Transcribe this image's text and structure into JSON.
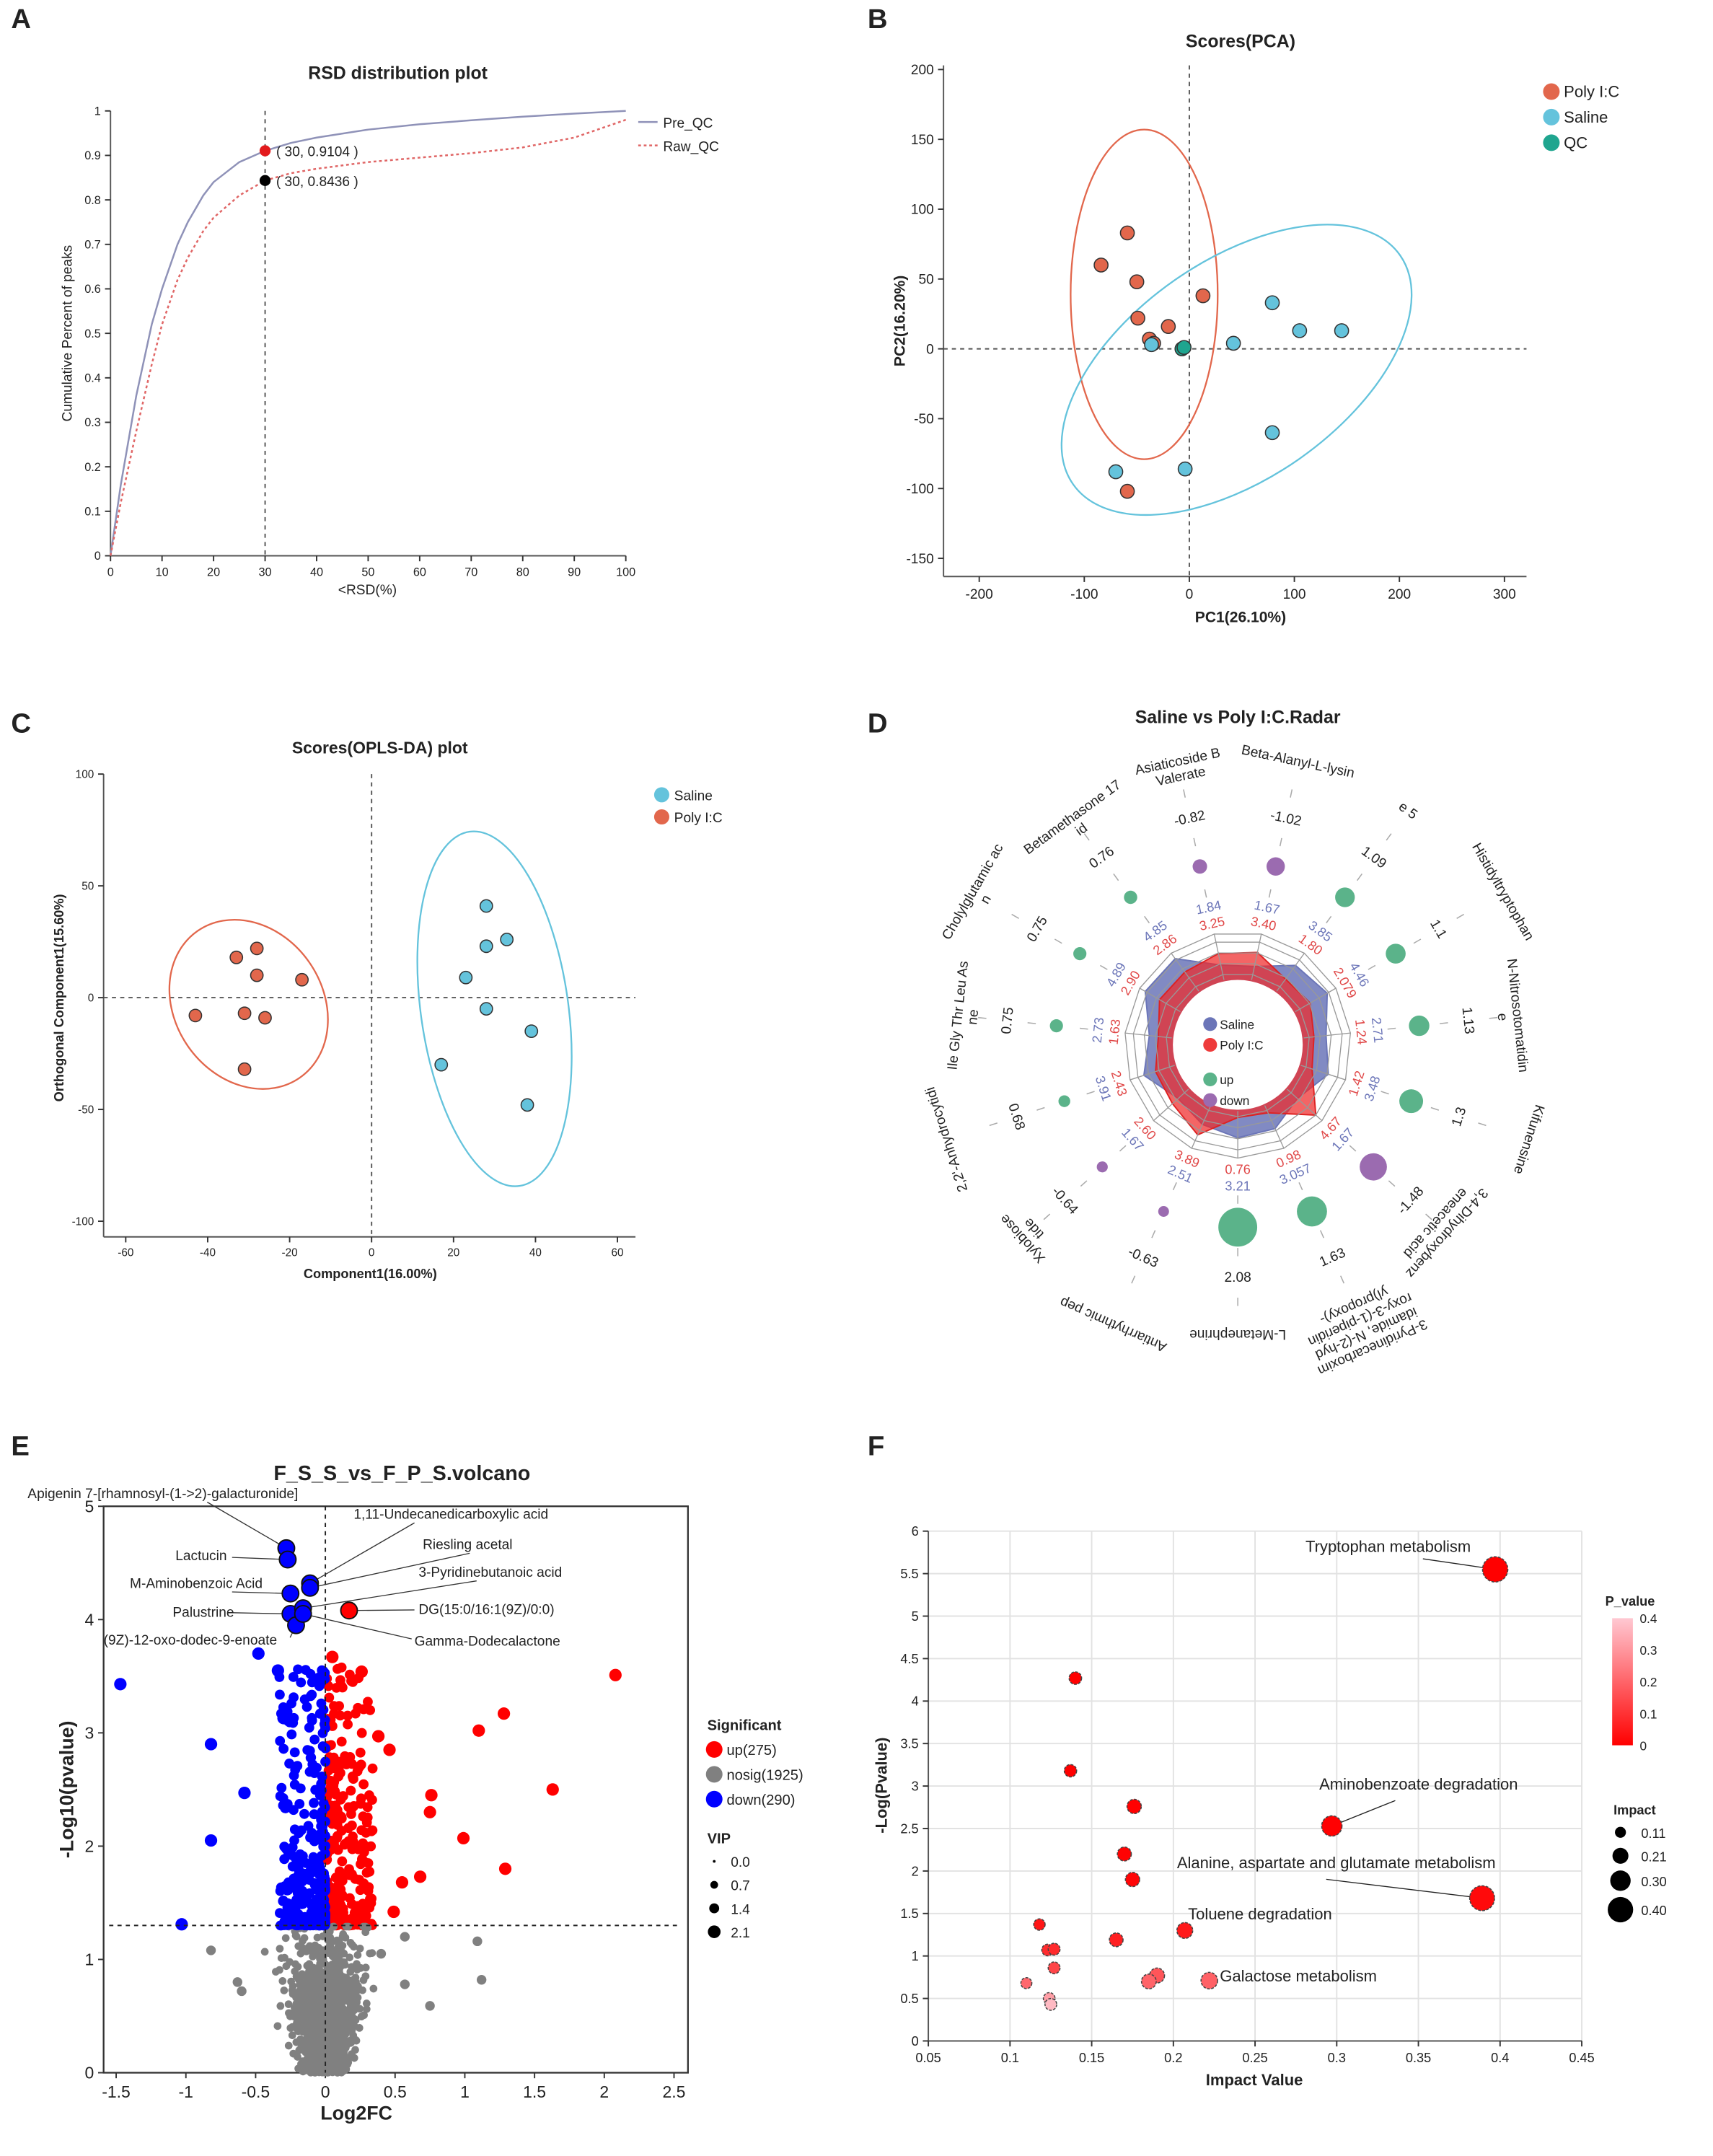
{
  "figure": {
    "panel_labels": [
      "A",
      "B",
      "C",
      "D",
      "E",
      "F"
    ]
  },
  "chart_data": [
    {
      "type": "line",
      "title": "RSD distribution plot",
      "xlabel": "<RSD(%)",
      "ylabel": "Cumulative Percent of peaks",
      "xlim": [
        0,
        100
      ],
      "ylim": [
        0,
        1
      ],
      "xticks": [
        0,
        10,
        20,
        30,
        40,
        50,
        60,
        70,
        80,
        90,
        100
      ],
      "yticks": [
        0,
        0.1,
        0.2,
        0.3,
        0.4,
        0.5,
        0.6,
        0.7,
        0.8,
        0.9,
        1
      ],
      "grid": false,
      "legend_position": "top-right",
      "reference_line_x": 30,
      "series": [
        {
          "name": "Pre_QC",
          "color": "#8f92b8",
          "style": "solid",
          "x": [
            0,
            2,
            5,
            8,
            10,
            13,
            15,
            18,
            20,
            25,
            30,
            35,
            40,
            50,
            60,
            70,
            80,
            90,
            100
          ],
          "y": [
            0,
            0.16,
            0.36,
            0.52,
            0.6,
            0.7,
            0.75,
            0.81,
            0.84,
            0.885,
            0.9104,
            0.928,
            0.94,
            0.958,
            0.97,
            0.979,
            0.987,
            0.994,
            1
          ]
        },
        {
          "name": "Raw_QC",
          "color": "#e06666",
          "style": "dotted",
          "x": [
            0,
            2,
            5,
            8,
            10,
            13,
            15,
            18,
            20,
            25,
            30,
            35,
            40,
            50,
            60,
            70,
            80,
            90,
            100
          ],
          "y": [
            0,
            0.12,
            0.28,
            0.43,
            0.52,
            0.62,
            0.67,
            0.73,
            0.76,
            0.81,
            0.8436,
            0.86,
            0.87,
            0.885,
            0.895,
            0.905,
            0.918,
            0.94,
            0.98
          ]
        }
      ],
      "annotations": [
        {
          "x": 30,
          "y": 0.9104,
          "label": "( 30, 0.9104 )",
          "color": "#e31a1c"
        },
        {
          "x": 30,
          "y": 0.8436,
          "label": "( 30, 0.8436 )",
          "color": "#000000"
        }
      ]
    },
    {
      "type": "scatter",
      "title": "Scores(PCA)",
      "xlabel": "PC1(26.10%)",
      "ylabel": "PC2(16.20%)",
      "xlim": [
        -234,
        321
      ],
      "ylim": [
        -163,
        203
      ],
      "xticks": [
        -200,
        -100,
        0,
        100,
        200,
        300
      ],
      "yticks": [
        -150,
        -100,
        -50,
        0,
        50,
        100,
        150,
        200
      ],
      "legend_position": "top-right",
      "series": [
        {
          "name": "Poly I:C",
          "color": "#e2674c",
          "points": [
            [
              -59,
              83
            ],
            [
              -84,
              60
            ],
            [
              -50,
              48
            ],
            [
              -49,
              22
            ],
            [
              -38,
              7
            ],
            [
              -34,
              4
            ],
            [
              -20,
              16
            ],
            [
              13,
              38
            ],
            [
              -59,
              -102
            ]
          ],
          "ellipse": {
            "cx": -43,
            "cy": 39,
            "rx": 70,
            "ry": 118,
            "angle": 0
          }
        },
        {
          "name": "Saline",
          "color": "#64c3dc",
          "points": [
            [
              -36,
              3
            ],
            [
              79,
              33
            ],
            [
              105,
              13
            ],
            [
              145,
              13
            ],
            [
              42,
              4
            ],
            [
              79,
              -60
            ],
            [
              -70,
              -88
            ],
            [
              -4,
              -86
            ]
          ],
          "ellipse": {
            "cx": 45,
            "cy": -15,
            "rx": 190,
            "ry": 78,
            "angle": 35
          }
        },
        {
          "name": "QC",
          "color": "#1fa58f",
          "points": [
            [
              -7,
              0
            ],
            [
              -5,
              1
            ]
          ]
        }
      ]
    },
    {
      "type": "scatter",
      "title": "Scores(OPLS-DA) plot",
      "xlabel": "Component1(16.00%)",
      "ylabel": "Orthogonal Component1(15.60%)",
      "xlim": [
        -65.4,
        64.4
      ],
      "ylim": [
        -107,
        100
      ],
      "xticks": [
        -60,
        -40,
        -20,
        0,
        20,
        40,
        60
      ],
      "yticks": [
        -100,
        -50,
        0,
        50,
        100
      ],
      "legend_position": "top-right",
      "series": [
        {
          "name": "Saline",
          "color": "#64c3dc",
          "points": [
            [
              28,
              41
            ],
            [
              33,
              26
            ],
            [
              28,
              23
            ],
            [
              23,
              9
            ],
            [
              28,
              -5
            ],
            [
              39,
              -15
            ],
            [
              17,
              -30
            ],
            [
              38,
              -48
            ]
          ],
          "ellipse": {
            "cx": 30,
            "cy": -5,
            "rx": 18,
            "ry": 80,
            "angle": 8
          }
        },
        {
          "name": "Poly I:C",
          "color": "#e2674c",
          "points": [
            [
              -28,
              22
            ],
            [
              -33,
              18
            ],
            [
              -28,
              10
            ],
            [
              -17,
              8
            ],
            [
              -43,
              -8
            ],
            [
              -31,
              -7
            ],
            [
              -26,
              -9
            ],
            [
              -31,
              -32
            ]
          ],
          "ellipse": {
            "cx": -30,
            "cy": -3,
            "rx": 18,
            "ry": 40,
            "angle": 35
          }
        }
      ]
    },
    {
      "type": "radar",
      "title": "Saline vs Poly I:C.Radar",
      "legend": [
        {
          "name": "Saline",
          "color": "#6b75b8"
        },
        {
          "name": "Poly I:C",
          "color": "#ee3b3b"
        },
        {
          "name": "up",
          "color": "#5bb38a"
        },
        {
          "name": "down",
          "color": "#9b6bb0"
        }
      ],
      "items": [
        {
          "name": [
            "Asiaticoside B",
            "Valerate"
          ],
          "log2fc": "-0.82",
          "saline": "1.84",
          "polyic": "3.25",
          "trend": "down"
        },
        {
          "name": [
            "Beta-Alanyl-L-lysin"
          ],
          "log2fc": "-1.02",
          "saline": "1.67",
          "polyic": "3.40",
          "trend": "down"
        },
        {
          "name": [
            "e 5"
          ],
          "log2fc": "1.09",
          "saline": "3.85",
          "polyic": "1.80",
          "trend": "up"
        },
        {
          "name": [
            "Histidyltryptophan"
          ],
          "log2fc": "1.1",
          "saline": "4.46",
          "polyic": "2.079",
          "trend": "up"
        },
        {
          "name": [
            "N-Nitrosotomatidin",
            "e"
          ],
          "log2fc": "1.13",
          "saline": "2.71",
          "polyic": "1.24",
          "trend": "up"
        },
        {
          "name": [
            "Kifunensine"
          ],
          "log2fc": "1.3",
          "saline": "3.48",
          "polyic": "1.42",
          "trend": "up"
        },
        {
          "name": [
            "3,4-Dihydroxybenz",
            "eneacetic acid"
          ],
          "log2fc": "-1.48",
          "saline": "1.67",
          "polyic": "4.67",
          "trend": "down"
        },
        {
          "name": [
            "3-Pyridinecarboxim",
            "idamide, N-(2-hyd",
            "roxy-3-(1-piperidin",
            "yl)propoxy)-"
          ],
          "log2fc": "1.63",
          "saline": "3.057",
          "polyic": "0.98",
          "trend": "up"
        },
        {
          "name": [
            "L-Metanephrine"
          ],
          "log2fc": "2.08",
          "saline": "3.21",
          "polyic": "0.76",
          "trend": "up"
        },
        {
          "name": [
            "Antiarrhythmic pep"
          ],
          "log2fc": "-0.63",
          "saline": "2.51",
          "polyic": "3.89",
          "trend": "down"
        },
        {
          "name": [
            "Xylobiose",
            "tide"
          ],
          "log2fc": "-0.64",
          "saline": "1.67",
          "polyic": "2.60",
          "trend": "down"
        },
        {
          "name": [
            "2,2'-Anhydrocytidi"
          ],
          "log2fc": "0.68",
          "saline": "3.91",
          "polyic": "2.43",
          "trend": "up"
        },
        {
          "name": [
            "Ile Gly Thr Leu As",
            "ne"
          ],
          "log2fc": "0.75",
          "saline": "2.73",
          "polyic": "1.63",
          "trend": "up"
        },
        {
          "name": [
            "Cholylglutamic ac",
            "n"
          ],
          "log2fc": "0.75",
          "saline": "4.89",
          "polyic": "2.90",
          "trend": "up"
        },
        {
          "name": [
            "Betamethasone 17",
            "id"
          ],
          "log2fc": "0.76",
          "saline": "4.85",
          "polyic": "2.86",
          "trend": "up"
        }
      ]
    },
    {
      "type": "scatter",
      "subtype": "volcano",
      "title": "F_S_S_vs_F_P_S.volcano",
      "xlabel": "Log2FC",
      "ylabel": "-Log10(pvalue)",
      "xlim": [
        -1.59,
        2.6
      ],
      "ylim": [
        0,
        5
      ],
      "xticks": [
        -1.5,
        -1,
        -0.5,
        0,
        0.5,
        1,
        1.5,
        2,
        2.5
      ],
      "yticks": [
        0,
        1,
        2,
        3,
        4,
        5
      ],
      "threshold_y": 1.3,
      "threshold_x": 0,
      "legend_position": "right",
      "significant_title": "Significant",
      "groups": [
        {
          "key": "up",
          "label": "up(275)",
          "count": 275,
          "color": "#ff0000"
        },
        {
          "key": "nosig",
          "label": "nosig(1925)",
          "count": 1925,
          "color": "#808080"
        },
        {
          "key": "down",
          "label": "down(290)",
          "count": 290,
          "color": "#0000ff"
        }
      ],
      "vip_title": "VIP",
      "vip_levels": [
        "0.0",
        "0.7",
        "1.4",
        "2.1"
      ],
      "labeled_points": [
        {
          "label": "Apigenin 7-[rhamnosyl-(1->2)-galacturonide]",
          "x": -0.28,
          "y": 4.63,
          "group": "down"
        },
        {
          "label": "Lactucin",
          "x": -0.27,
          "y": 4.53,
          "group": "down"
        },
        {
          "label": "M-Aminobenzoic Acid",
          "x": -0.25,
          "y": 4.23,
          "group": "down"
        },
        {
          "label": "Palustrine",
          "x": -0.25,
          "y": 4.05,
          "group": "down"
        },
        {
          "label": "(9Z)-12-oxo-dodec-9-enoate",
          "x": -0.21,
          "y": 3.95,
          "group": "down"
        },
        {
          "label": "1,11-Undecanedicarboxylic acid",
          "x": -0.11,
          "y": 4.32,
          "group": "down"
        },
        {
          "label": "Riesling acetal",
          "x": -0.11,
          "y": 4.28,
          "group": "down"
        },
        {
          "label": "3-Pyridinebutanoic acid",
          "x": -0.16,
          "y": 4.1,
          "group": "down"
        },
        {
          "label": "DG(15:0/16:1(9Z)/0:0)",
          "x": 0.17,
          "y": 4.08,
          "group": "up"
        },
        {
          "label": "Gamma-Dodecalactone",
          "x": -0.16,
          "y": 4.05,
          "group": "down"
        }
      ],
      "outlier_points": [
        [
          -1.47,
          3.43,
          "down"
        ],
        [
          -0.82,
          2.9,
          "down"
        ],
        [
          -0.58,
          2.47,
          "down"
        ],
        [
          -0.82,
          2.05,
          "down"
        ],
        [
          -1.03,
          1.31,
          "down"
        ],
        [
          -0.48,
          3.7,
          "down"
        ],
        [
          -0.34,
          3.55,
          "down"
        ],
        [
          -0.3,
          3.13,
          "down"
        ],
        [
          2.08,
          3.51,
          "up"
        ],
        [
          1.28,
          3.17,
          "up"
        ],
        [
          1.1,
          3.02,
          "up"
        ],
        [
          1.63,
          2.5,
          "up"
        ],
        [
          0.76,
          2.45,
          "up"
        ],
        [
          0.75,
          2.3,
          "up"
        ],
        [
          0.99,
          2.07,
          "up"
        ],
        [
          1.29,
          1.8,
          "up"
        ],
        [
          0.68,
          1.73,
          "up"
        ],
        [
          0.55,
          1.68,
          "up"
        ],
        [
          0.49,
          1.42,
          "up"
        ],
        [
          0.46,
          2.85,
          "up"
        ],
        [
          0.38,
          2.97,
          "up"
        ],
        [
          0.26,
          3.54,
          "up"
        ],
        [
          0.05,
          3.67,
          "up"
        ],
        [
          -0.82,
          1.08,
          "nosig"
        ],
        [
          -0.63,
          0.8,
          "nosig"
        ],
        [
          -0.6,
          0.72,
          "nosig"
        ],
        [
          1.09,
          1.16,
          "nosig"
        ],
        [
          1.12,
          0.82,
          "nosig"
        ],
        [
          0.75,
          0.59,
          "nosig"
        ],
        [
          0.57,
          1.2,
          "nosig"
        ],
        [
          0.57,
          0.78,
          "nosig"
        ],
        [
          0.4,
          1.05,
          "nosig"
        ]
      ]
    },
    {
      "type": "scatter",
      "subtype": "bubble",
      "title": "",
      "xlabel": "Impact Value",
      "ylabel": "-Log(Pvalue)",
      "xlim": [
        0.05,
        0.45
      ],
      "ylim": [
        0,
        6
      ],
      "xticks": [
        0.05,
        0.1,
        0.15,
        0.2,
        0.25,
        0.3,
        0.35,
        0.4,
        0.45
      ],
      "yticks": [
        0,
        0.5,
        1,
        1.5,
        2,
        2.5,
        3,
        3.5,
        4,
        4.5,
        5,
        5.5,
        6
      ],
      "grid": true,
      "colorbar": {
        "title": "P_value",
        "ticks": [
          0,
          0.1,
          0.2,
          0.3,
          0.4
        ],
        "low_color": "#ff0000",
        "high_color": "#ffc8d2"
      },
      "size_legend": {
        "title": "Impact",
        "levels": [
          "0.11",
          "0.21",
          "0.30",
          "0.40"
        ]
      },
      "points": [
        {
          "impact": 0.397,
          "neglogp": 5.55,
          "label": "Tryptophan metabolism"
        },
        {
          "impact": 0.297,
          "neglogp": 2.53,
          "label": "Aminobenzoate degradation"
        },
        {
          "impact": 0.389,
          "neglogp": 1.68,
          "label": "Alanine, aspartate and glutamate metabolism"
        },
        {
          "impact": 0.207,
          "neglogp": 1.3,
          "label": "Toluene degradation"
        },
        {
          "impact": 0.222,
          "neglogp": 0.71,
          "label": "Galactose metabolism"
        },
        {
          "impact": 0.14,
          "neglogp": 4.27
        },
        {
          "impact": 0.137,
          "neglogp": 3.18
        },
        {
          "impact": 0.176,
          "neglogp": 2.76
        },
        {
          "impact": 0.17,
          "neglogp": 2.2
        },
        {
          "impact": 0.175,
          "neglogp": 1.9
        },
        {
          "impact": 0.118,
          "neglogp": 1.37
        },
        {
          "impact": 0.165,
          "neglogp": 1.19
        },
        {
          "impact": 0.123,
          "neglogp": 1.07
        },
        {
          "impact": 0.127,
          "neglogp": 1.08
        },
        {
          "impact": 0.127,
          "neglogp": 0.86
        },
        {
          "impact": 0.11,
          "neglogp": 0.68
        },
        {
          "impact": 0.124,
          "neglogp": 0.5
        },
        {
          "impact": 0.125,
          "neglogp": 0.43
        },
        {
          "impact": 0.19,
          "neglogp": 0.77
        },
        {
          "impact": 0.185,
          "neglogp": 0.7
        }
      ]
    }
  ]
}
